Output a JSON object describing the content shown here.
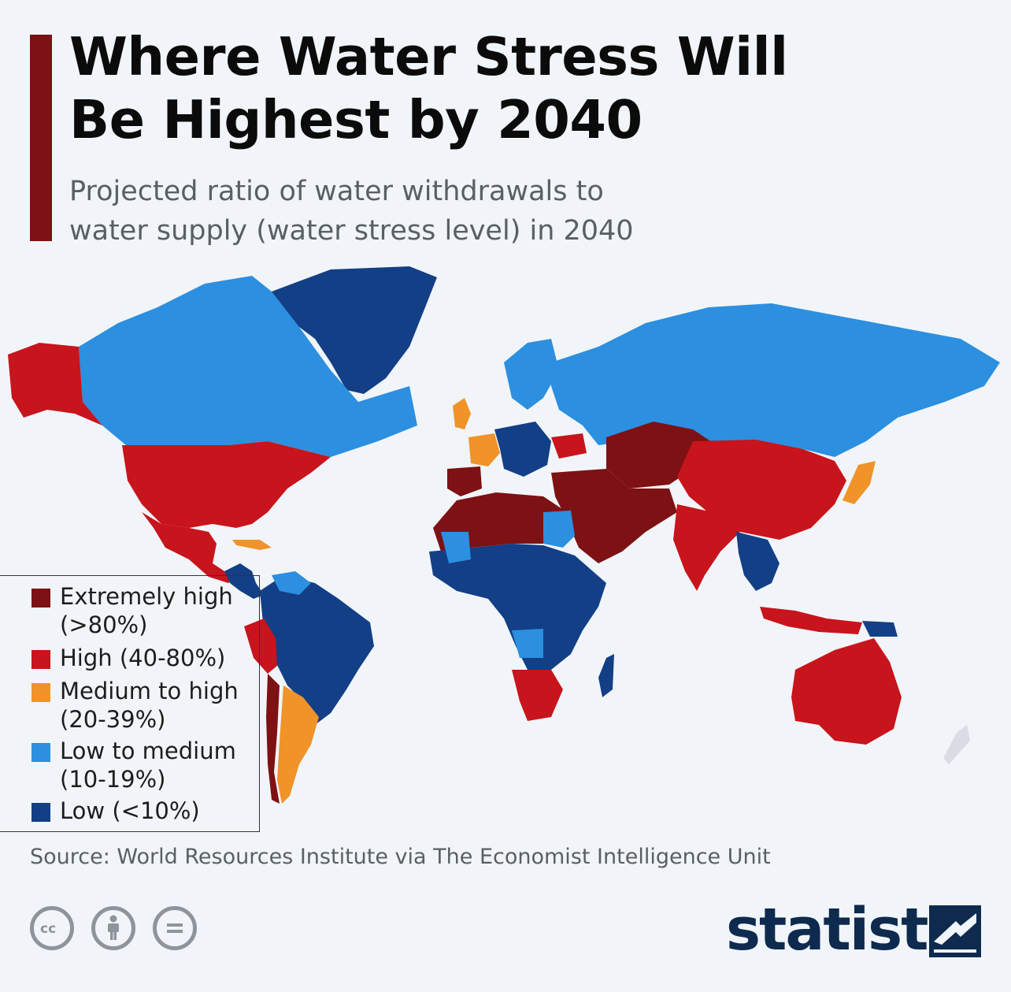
{
  "title": {
    "line1": "Where Water Stress Will",
    "line2": "Be Highest by 2040"
  },
  "subtitle": {
    "line1": "Projected ratio of water withdrawals to",
    "line2": "water supply (water stress level) in 2040"
  },
  "colors": {
    "accent": "#7d1113",
    "extremely_high": "#7d1113",
    "high": "#c8141c",
    "medium_to_high": "#f09329",
    "low_to_medium": "#2c8fe0",
    "low": "#133f86",
    "no_data": "#d9dde3"
  },
  "legend": [
    {
      "key": "extremely_high",
      "line1": "Extremely high",
      "line2": "(>80%)",
      "color": "#7d1113"
    },
    {
      "key": "high",
      "line1": "High (40-80%)",
      "line2": "",
      "color": "#c8141c"
    },
    {
      "key": "medium_to_high",
      "line1": "Medium to high",
      "line2": "(20-39%)",
      "color": "#f09329"
    },
    {
      "key": "low_to_medium",
      "line1": "Low to medium",
      "line2": "(10-19%)",
      "color": "#2c8fe0"
    },
    {
      "key": "low",
      "line1": "Low (<10%)",
      "line2": "",
      "color": "#133f86"
    }
  ],
  "source": "Source: World Resources Institute via The Economist Intelligence Unit",
  "license_icons": [
    "cc-icon",
    "attribution-icon",
    "no-derivatives-icon"
  ],
  "brand": {
    "name": "statista",
    "icon": "statista-logo-icon"
  }
}
